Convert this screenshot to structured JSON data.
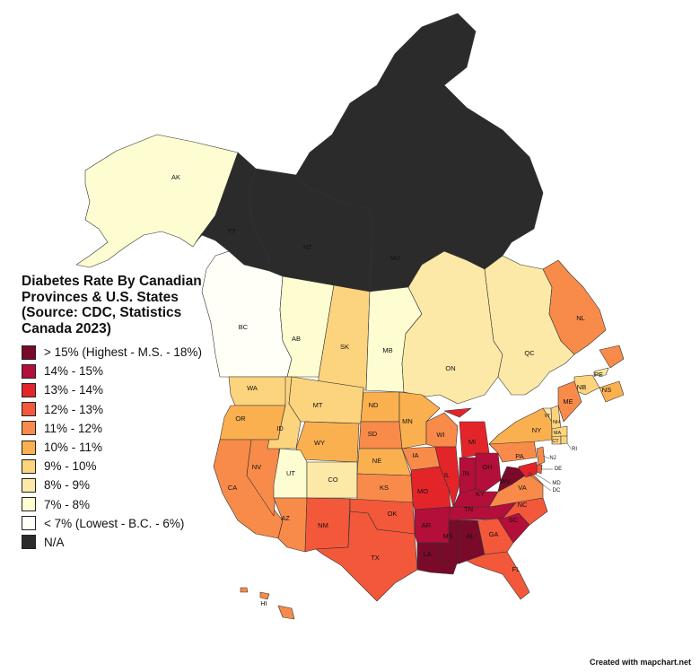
{
  "title": "Diabetes Rate By Canadian Provinces & U.S. States (Source: CDC, Statistics Canada 2023)",
  "legend": [
    {
      "label": "> 15% (Highest - M.S. - 18%)",
      "color": "#7a0a2a"
    },
    {
      "label": "14% - 15%",
      "color": "#b40e3a"
    },
    {
      "label": "13% - 14%",
      "color": "#e3252a"
    },
    {
      "label": "12% - 13%",
      "color": "#f3583a"
    },
    {
      "label": "11% - 12%",
      "color": "#f88b4a"
    },
    {
      "label": "10% - 11%",
      "color": "#fbb050"
    },
    {
      "label": "9% - 10%",
      "color": "#fcd47e"
    },
    {
      "label": "8% - 9%",
      "color": "#fde9a7"
    },
    {
      "label": "7% - 8%",
      "color": "#fefdd2"
    },
    {
      "label": "< 7% (Lowest - B.C. - 6%)",
      "color": "#fffff8"
    },
    {
      "label": "N/A",
      "color": "#2b2b2b"
    }
  ],
  "regions": {
    "AK": {
      "label": "AK",
      "color": "#fefdd2"
    },
    "YT": {
      "label": "YT",
      "color": "#2b2b2b"
    },
    "NT": {
      "label": "NT",
      "color": "#2b2b2b"
    },
    "NU": {
      "label": "NU",
      "color": "#2b2b2b"
    },
    "BC": {
      "label": "BC",
      "color": "#fffff8"
    },
    "AB": {
      "label": "AB",
      "color": "#fefdd2"
    },
    "SK": {
      "label": "SK",
      "color": "#fcd47e"
    },
    "MB": {
      "label": "MB",
      "color": "#fefdd2"
    },
    "ON": {
      "label": "ON",
      "color": "#fde9a7"
    },
    "QC": {
      "label": "QC",
      "color": "#fde9a7"
    },
    "NL": {
      "label": "NL",
      "color": "#f88b4a"
    },
    "NB": {
      "label": "NB",
      "color": "#fcd47e"
    },
    "NS": {
      "label": "NS",
      "color": "#fbb050"
    },
    "PE": {
      "label": "PE",
      "color": "#fde9a7"
    },
    "WA": {
      "label": "WA",
      "color": "#fcd47e"
    },
    "OR": {
      "label": "OR",
      "color": "#fbb050"
    },
    "CA": {
      "label": "CA",
      "color": "#f88b4a"
    },
    "NV": {
      "label": "NV",
      "color": "#f88b4a"
    },
    "ID": {
      "label": "ID",
      "color": "#fcd47e"
    },
    "MT": {
      "label": "MT",
      "color": "#fcd47e"
    },
    "WY": {
      "label": "WY",
      "color": "#fbb050"
    },
    "UT": {
      "label": "UT",
      "color": "#fefdd2"
    },
    "CO": {
      "label": "CO",
      "color": "#fde9a7"
    },
    "AZ": {
      "label": "AZ",
      "color": "#f88b4a"
    },
    "NM": {
      "label": "NM",
      "color": "#f3583a"
    },
    "ND": {
      "label": "ND",
      "color": "#fbb050"
    },
    "SD": {
      "label": "SD",
      "color": "#f88b4a"
    },
    "NE": {
      "label": "NE",
      "color": "#fbb050"
    },
    "KS": {
      "label": "KS",
      "color": "#f88b4a"
    },
    "OK": {
      "label": "OK",
      "color": "#f3583a"
    },
    "TX": {
      "label": "TX",
      "color": "#f3583a"
    },
    "MN": {
      "label": "MN",
      "color": "#fbb050"
    },
    "IA": {
      "label": "IA",
      "color": "#f88b4a"
    },
    "MO": {
      "label": "MO",
      "color": "#e3252a"
    },
    "AR": {
      "label": "AR",
      "color": "#b40e3a"
    },
    "LA": {
      "label": "LA",
      "color": "#7a0a2a"
    },
    "WI": {
      "label": "WI",
      "color": "#f88b4a"
    },
    "IL": {
      "label": "IL",
      "color": "#e3252a"
    },
    "MI": {
      "label": "MI",
      "color": "#e3252a"
    },
    "IN": {
      "label": "IN",
      "color": "#b40e3a"
    },
    "OH": {
      "label": "OH",
      "color": "#b40e3a"
    },
    "KY": {
      "label": "KY",
      "color": "#b40e3a"
    },
    "TN": {
      "label": "TN",
      "color": "#b40e3a"
    },
    "MS": {
      "label": "MS",
      "color": "#7a0a2a"
    },
    "AL": {
      "label": "AL",
      "color": "#7a0a2a"
    },
    "GA": {
      "label": "GA",
      "color": "#f3583a"
    },
    "FL": {
      "label": "FL",
      "color": "#f3583a"
    },
    "SC": {
      "label": "SC",
      "color": "#b40e3a"
    },
    "NC": {
      "label": "NC",
      "color": "#f3583a"
    },
    "VA": {
      "label": "VA",
      "color": "#f88b4a"
    },
    "WV": {
      "label": "WV",
      "color": "#7a0a2a"
    },
    "PA": {
      "label": "PA",
      "color": "#f88b4a"
    },
    "NY": {
      "label": "NY",
      "color": "#fbb050"
    },
    "VT": {
      "label": "VT",
      "color": "#fde9a7"
    },
    "NH": {
      "label": "NH",
      "color": "#fcd47e"
    },
    "ME": {
      "label": "ME",
      "color": "#f88b4a"
    },
    "MA": {
      "label": "MA",
      "color": "#fcd47e"
    },
    "CT": {
      "label": "CT",
      "color": "#fcd47e"
    },
    "RI": {
      "label": "RI",
      "color": "#fcd47e"
    },
    "NJ": {
      "label": "NJ",
      "color": "#f88b4a"
    },
    "DE": {
      "label": "DE",
      "color": "#f3583a"
    },
    "MD": {
      "label": "MD",
      "color": "#e3252a"
    },
    "DC": {
      "label": "DC",
      "color": "#e3252a"
    },
    "HI": {
      "label": "HI",
      "color": "#f88b4a"
    }
  },
  "credit": "Created with mapchart.net"
}
